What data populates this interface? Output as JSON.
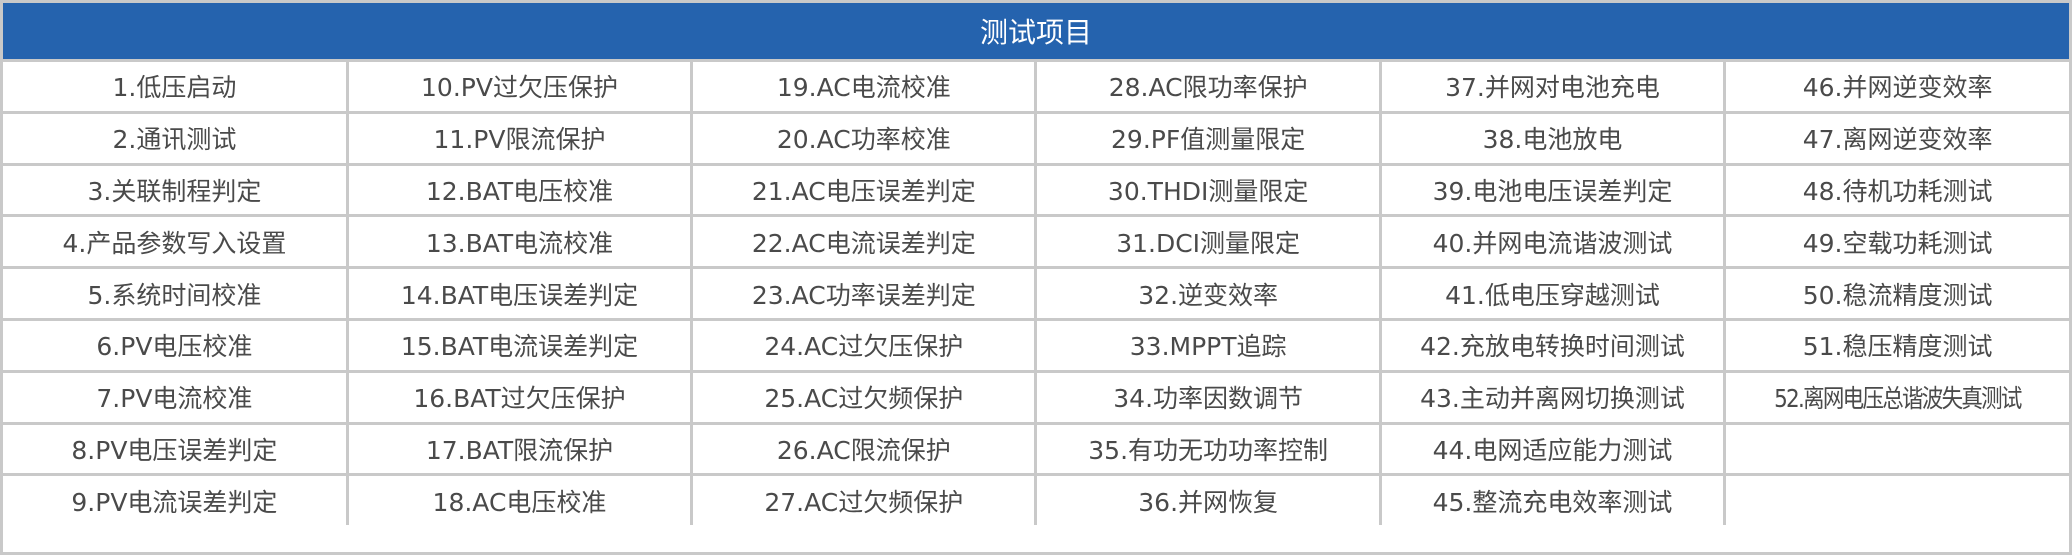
{
  "header": {
    "title": "测试项目"
  },
  "colors": {
    "header_bg": "#2563ae",
    "border": "#c9c9c9",
    "text": "#4a4a4a"
  },
  "columns": [
    [
      "1.低压启动",
      "2.通讯测试",
      "3.关联制程判定",
      "4.产品参数写入设置",
      "5.系统时间校准",
      "6.PV电压校准",
      "7.PV电流校准",
      "8.PV电压误差判定",
      "9.PV电流误差判定"
    ],
    [
      "10.PV过欠压保护",
      "11.PV限流保护",
      "12.BAT电压校准",
      "13.BAT电流校准",
      "14.BAT电压误差判定",
      "15.BAT电流误差判定",
      "16.BAT过欠压保护",
      "17.BAT限流保护",
      "18.AC电压校准"
    ],
    [
      "19.AC电流校准",
      "20.AC功率校准",
      "21.AC电压误差判定",
      "22.AC电流误差判定",
      "23.AC功率误差判定",
      "24.AC过欠压保护",
      "25.AC过欠频保护",
      "26.AC限流保护",
      "27.AC过欠频保护"
    ],
    [
      "28.AC限功率保护",
      "29.PF值测量限定",
      "30.THDI测量限定",
      "31.DCI测量限定",
      "32.逆变效率",
      "33.MPPT追踪",
      "34.功率因数调节",
      "35.有功无功功率控制",
      "36.并网恢复"
    ],
    [
      "37.并网对电池充电",
      "38.电池放电",
      "39.电池电压误差判定",
      "40.并网电流谐波测试",
      "41.低电压穿越测试",
      "42.充放电转换时间测试",
      "43.主动并离网切换测试",
      "44.电网适应能力测试",
      "45.整流充电效率测试"
    ],
    [
      "46.并网逆变效率",
      "47.离网逆变效率",
      "48.待机功耗测试",
      "49.空载功耗测试",
      "50.稳流精度测试",
      "51.稳压精度测试",
      "52.离网电压总谐波失真测试"
    ]
  ]
}
